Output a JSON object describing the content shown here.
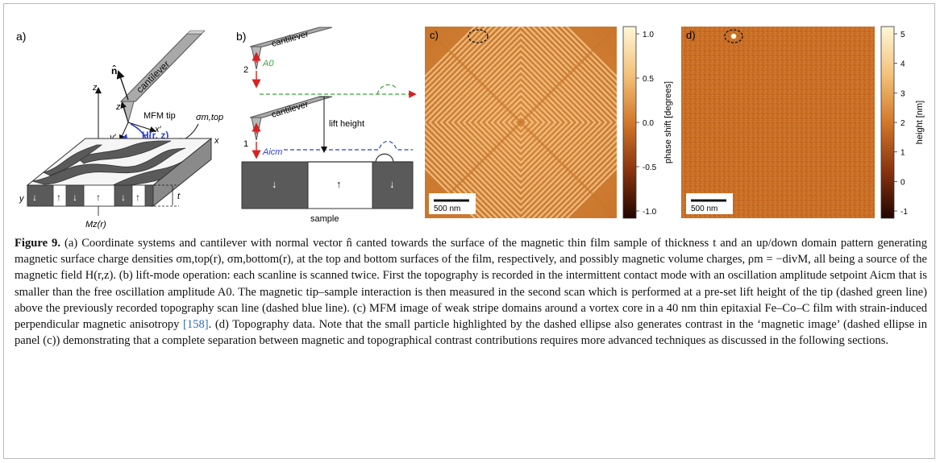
{
  "panel_a": {
    "label": "a)",
    "cantilever": "cantilever",
    "normal": "n̂",
    "mfm_tip": "MFM tip",
    "axis_z": "z",
    "axis_zp": "z′",
    "axis_x": "x",
    "axis_xp": "x′",
    "axis_y": "y",
    "axis_yp": "y′",
    "field": "H(r, z)",
    "sigma_top": "σm,top",
    "thickness": "t",
    "mz": "Mz(r)",
    "arrows": [
      "↓",
      "↑",
      "↓",
      "↑",
      "↓",
      "↑"
    ]
  },
  "panel_b": {
    "label": "b)",
    "cantilever_top": "cantilever",
    "cantilever_bottom": "cantilever",
    "scan_2": "2",
    "scan_1": "1",
    "a0": "A0",
    "aicm": "Aicm",
    "lift_height": "lift height",
    "sample": "sample",
    "arrows": [
      "↓",
      "↑",
      "↓"
    ],
    "colors": {
      "green": "#3aa43a",
      "blue": "#2b3fd6",
      "red": "#d62222"
    }
  },
  "panel_c": {
    "label": "c)",
    "scalebar": "500 nm",
    "colorbar_label": "phase shift [degrees]",
    "colorbar_ticks": [
      "1.0",
      "0.5",
      "0.0",
      "-0.5",
      "-1.0"
    ]
  },
  "panel_d": {
    "label": "d)",
    "scalebar": "500 nm",
    "colorbar_label": "height [nm]",
    "colorbar_ticks": [
      "5",
      "4",
      "3",
      "2",
      "1",
      "0",
      "-1"
    ]
  },
  "caption": {
    "figure_label": "Figure 9.",
    "p1": " (a) Coordinate systems and cantilever with normal vector n̂ canted towards the surface of the magnetic thin film sample of thickness t and an up/down domain pattern generating magnetic surface charge densities σm,top(r), σm,bottom(r), at the top and bottom surfaces of the film, respectively, and possibly magnetic volume charges, ρm = −divM, all being a source of the magnetic field H(r,z). (b) lift-mode operation: each scanline is scanned twice. First the topography is recorded in the intermittent contact mode with an oscillation amplitude setpoint Aicm that is smaller than the free oscillation amplitude A0. The magnetic tip–sample interaction is then measured in the second scan which is performed at a pre-set lift height of the tip (dashed green line) above the previously recorded topography scan line (dashed blue line). (c) MFM image of weak stripe domains around a vortex core in a 40 nm thin epitaxial Fe–Co–C film with strain-induced perpendicular magnetic anisotropy ",
    "ref": "[158]",
    "p2": ". (d) Topography data. Note that the small particle highlighted by the dashed ellipse also generates contrast in the ‘magnetic image’ (dashed ellipse in panel (c)) demonstrating that a complete separation between magnetic and topographical contrast contributions requires more advanced techniques as discussed in the following sections."
  }
}
